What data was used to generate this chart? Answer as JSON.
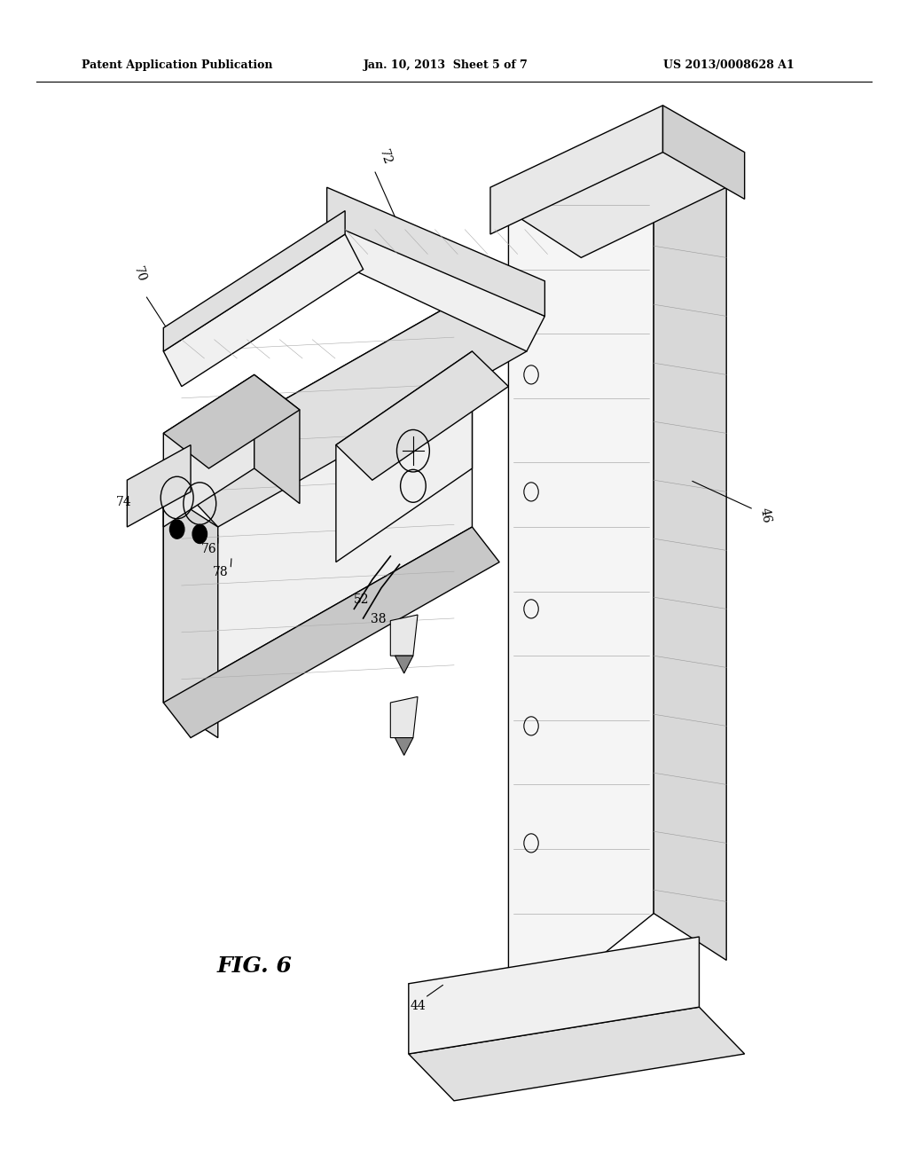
{
  "bg_color": "#ffffff",
  "header_left": "Patent Application Publication",
  "header_mid": "Jan. 10, 2013  Sheet 5 of 7",
  "header_right": "US 2013/0008628 A1",
  "figure_label": "FIG. 6"
}
